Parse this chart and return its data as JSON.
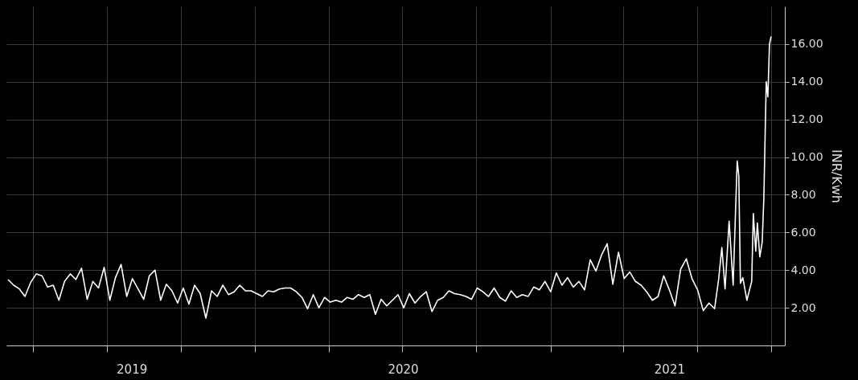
{
  "chart_data": {
    "type": "line",
    "ylabel": "INR/Kwh",
    "grid": true,
    "xlim": [
      "2019-02-27",
      "2021-10-18"
    ],
    "xticks": [
      {
        "value": "2019-04-01",
        "label": null
      },
      {
        "value": "2019-07-01",
        "label": null
      },
      {
        "value": "2019-10-01",
        "label": null
      },
      {
        "value": "2020-01-01",
        "label": null
      },
      {
        "value": "2020-04-01",
        "label": null
      },
      {
        "value": "2020-07-01",
        "label": null
      },
      {
        "value": "2020-10-01",
        "label": null
      },
      {
        "value": "2021-01-01",
        "label": null
      },
      {
        "value": "2021-04-01",
        "label": null
      },
      {
        "value": "2021-07-01",
        "label": null
      },
      {
        "value": "2021-10-01",
        "label": null
      },
      {
        "value": "2019-08-01",
        "label": "2019"
      },
      {
        "value": "2020-07-02",
        "label": "2020"
      },
      {
        "value": "2021-05-28",
        "label": "2021"
      }
    ],
    "ylim": [
      0,
      18
    ],
    "yticks": [
      {
        "value": 2,
        "label": "2.00"
      },
      {
        "value": 4,
        "label": "4.00"
      },
      {
        "value": 6,
        "label": "6.00"
      },
      {
        "value": 8,
        "label": "8.00"
      },
      {
        "value": 10,
        "label": "10.00"
      },
      {
        "value": 12,
        "label": "12.00"
      },
      {
        "value": 14,
        "label": "14.00"
      },
      {
        "value": 16,
        "label": "16.00"
      }
    ],
    "x": [
      "2019-03-01",
      "2019-03-08",
      "2019-03-15",
      "2019-03-22",
      "2019-03-29",
      "2019-04-05",
      "2019-04-12",
      "2019-04-19",
      "2019-04-26",
      "2019-05-03",
      "2019-05-10",
      "2019-05-17",
      "2019-05-24",
      "2019-05-31",
      "2019-06-07",
      "2019-06-14",
      "2019-06-21",
      "2019-06-28",
      "2019-07-05",
      "2019-07-12",
      "2019-07-19",
      "2019-07-26",
      "2019-08-02",
      "2019-08-09",
      "2019-08-16",
      "2019-08-23",
      "2019-08-30",
      "2019-09-06",
      "2019-09-13",
      "2019-09-20",
      "2019-09-27",
      "2019-10-04",
      "2019-10-11",
      "2019-10-18",
      "2019-10-25",
      "2019-11-01",
      "2019-11-08",
      "2019-11-15",
      "2019-11-22",
      "2019-11-29",
      "2019-12-06",
      "2019-12-13",
      "2019-12-20",
      "2019-12-27",
      "2020-01-03",
      "2020-01-10",
      "2020-01-17",
      "2020-01-24",
      "2020-01-31",
      "2020-02-07",
      "2020-02-14",
      "2020-02-21",
      "2020-02-28",
      "2020-03-06",
      "2020-03-13",
      "2020-03-20",
      "2020-03-27",
      "2020-04-03",
      "2020-04-10",
      "2020-04-17",
      "2020-04-24",
      "2020-05-01",
      "2020-05-08",
      "2020-05-15",
      "2020-05-22",
      "2020-05-29",
      "2020-06-05",
      "2020-06-12",
      "2020-06-19",
      "2020-06-26",
      "2020-07-03",
      "2020-07-10",
      "2020-07-17",
      "2020-07-24",
      "2020-07-31",
      "2020-08-07",
      "2020-08-14",
      "2020-08-21",
      "2020-08-28",
      "2020-09-04",
      "2020-09-11",
      "2020-09-18",
      "2020-09-25",
      "2020-10-02",
      "2020-10-09",
      "2020-10-16",
      "2020-10-23",
      "2020-10-30",
      "2020-11-06",
      "2020-11-13",
      "2020-11-20",
      "2020-11-27",
      "2020-12-04",
      "2020-12-11",
      "2020-12-18",
      "2020-12-25",
      "2021-01-01",
      "2021-01-08",
      "2021-01-15",
      "2021-01-22",
      "2021-01-29",
      "2021-02-05",
      "2021-02-12",
      "2021-02-19",
      "2021-02-26",
      "2021-03-05",
      "2021-03-12",
      "2021-03-19",
      "2021-03-26",
      "2021-04-02",
      "2021-04-09",
      "2021-04-16",
      "2021-04-23",
      "2021-04-30",
      "2021-05-07",
      "2021-05-14",
      "2021-05-21",
      "2021-05-28",
      "2021-06-04",
      "2021-06-11",
      "2021-06-18",
      "2021-06-25",
      "2021-07-02",
      "2021-07-09",
      "2021-07-16",
      "2021-07-23",
      "2021-07-28",
      "2021-08-01",
      "2021-08-05",
      "2021-08-10",
      "2021-08-15",
      "2021-08-20",
      "2021-08-22",
      "2021-08-24",
      "2021-08-27",
      "2021-09-01",
      "2021-09-07",
      "2021-09-09",
      "2021-09-12",
      "2021-09-14",
      "2021-09-17",
      "2021-09-20",
      "2021-09-22",
      "2021-09-25",
      "2021-09-27",
      "2021-09-29",
      "2021-10-01"
    ],
    "series": [
      {
        "color": "#ffffff",
        "values": [
          3.5,
          3.2,
          3.0,
          2.6,
          3.35,
          3.8,
          3.7,
          3.1,
          3.2,
          2.4,
          3.4,
          3.8,
          3.5,
          4.1,
          2.45,
          3.4,
          3.05,
          4.15,
          2.4,
          3.6,
          4.3,
          2.6,
          3.55,
          3.0,
          2.45,
          3.7,
          4.0,
          2.4,
          3.25,
          2.9,
          2.25,
          3.05,
          2.2,
          3.2,
          2.75,
          1.45,
          2.9,
          2.6,
          3.2,
          2.7,
          2.85,
          3.2,
          2.9,
          2.9,
          2.75,
          2.6,
          2.9,
          2.85,
          3.0,
          3.05,
          3.05,
          2.85,
          2.55,
          1.95,
          2.7,
          2.0,
          2.55,
          2.3,
          2.4,
          2.3,
          2.55,
          2.45,
          2.7,
          2.55,
          2.7,
          1.65,
          2.45,
          2.1,
          2.4,
          2.7,
          2.0,
          2.75,
          2.25,
          2.6,
          2.85,
          1.8,
          2.4,
          2.55,
          2.9,
          2.75,
          2.7,
          2.6,
          2.45,
          3.05,
          2.85,
          2.6,
          3.05,
          2.55,
          2.35,
          2.9,
          2.55,
          2.7,
          2.6,
          3.1,
          2.95,
          3.4,
          2.85,
          3.85,
          3.2,
          3.6,
          3.1,
          3.4,
          2.95,
          4.55,
          3.95,
          4.8,
          5.4,
          3.25,
          4.95,
          3.55,
          3.9,
          3.4,
          3.2,
          2.85,
          2.4,
          2.6,
          3.7,
          2.95,
          2.1,
          4.05,
          4.6,
          3.55,
          2.95,
          1.85,
          2.25,
          1.95,
          3.5,
          5.2,
          3.0,
          6.6,
          3.2,
          9.8,
          9.0,
          3.3,
          3.6,
          2.4,
          3.4,
          7.0,
          5.0,
          6.5,
          4.7,
          5.5,
          7.8,
          14.0,
          13.2,
          16.0,
          16.4
        ]
      }
    ]
  }
}
